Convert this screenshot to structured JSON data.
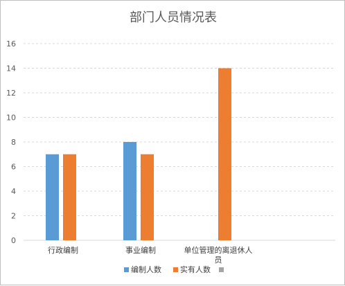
{
  "chart_data": {
    "type": "bar",
    "title": "部门人员情况表",
    "categories": [
      "行政编制",
      "事业编制",
      "单位管理的离退休人员"
    ],
    "series": [
      {
        "name": "编制人数",
        "values": [
          7,
          8,
          null
        ],
        "color": "#5b9bd5"
      },
      {
        "name": "实有人数",
        "values": [
          7,
          7,
          14
        ],
        "color": "#ed7d31"
      },
      {
        "name": "",
        "values": [
          null,
          null,
          null
        ],
        "color": "#a5a5a5"
      }
    ],
    "ylim": [
      0,
      16
    ],
    "yticks": [
      0,
      2,
      4,
      6,
      8,
      10,
      12,
      14,
      16
    ],
    "grid": true,
    "legend_position": "bottom"
  }
}
